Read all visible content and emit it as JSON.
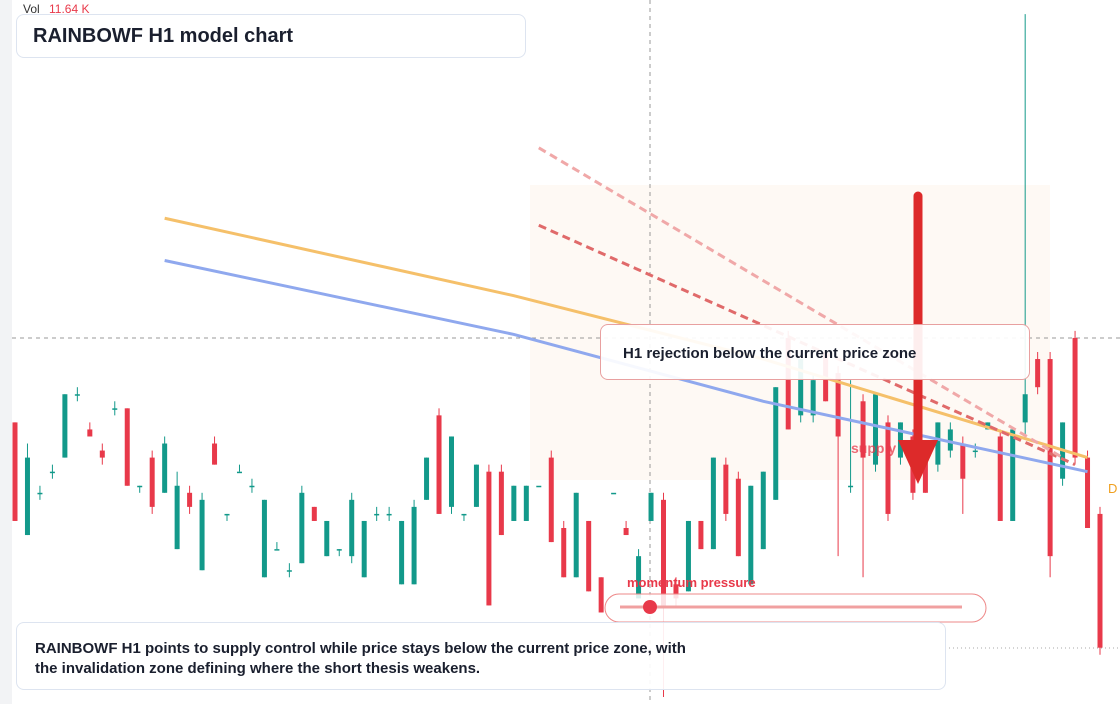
{
  "header": {
    "vol": "Vol",
    "vol_value": "11.64 K",
    "edge_label": "D"
  },
  "chart_data": {
    "type": "candlestick",
    "title": "RAINBOWF H1 model chart",
    "annotation": "H1 rejection below the current price zone",
    "zone_label": "supply",
    "indicator_label": "momentum pressure",
    "note": "RAINBOWF H1 points to supply control while price stays below the current price zone, with the invalidation zone defining where the short thesis weakens.",
    "ylim": [
      0,
      100
    ],
    "up_color": "#12998a",
    "down_color": "#e8394a",
    "candles": [
      [
        40,
        40,
        26,
        26
      ],
      [
        24,
        37,
        24,
        35
      ],
      [
        30,
        31,
        29,
        30
      ],
      [
        33,
        34,
        32,
        33
      ],
      [
        35,
        44,
        35,
        44
      ],
      [
        44,
        45,
        43,
        44
      ],
      [
        39,
        40,
        38,
        38
      ],
      [
        36,
        37,
        34,
        35
      ],
      [
        42,
        43,
        41,
        42
      ],
      [
        42,
        42,
        31,
        31
      ],
      [
        31,
        31,
        30,
        31
      ],
      [
        35,
        36,
        27,
        28
      ],
      [
        30,
        38,
        30,
        37
      ],
      [
        22,
        33,
        22,
        31
      ],
      [
        30,
        31,
        27,
        28
      ],
      [
        19,
        30,
        19,
        29
      ],
      [
        37,
        38,
        34,
        34
      ],
      [
        27,
        27,
        26,
        27
      ],
      [
        33,
        34,
        33,
        33
      ],
      [
        31,
        32,
        30,
        31
      ],
      [
        18,
        29,
        18,
        29
      ],
      [
        22,
        23,
        22,
        22
      ],
      [
        19,
        20,
        18,
        19
      ],
      [
        20,
        31,
        20,
        30
      ],
      [
        28,
        28,
        26,
        26
      ],
      [
        21,
        26,
        21,
        26
      ],
      [
        22,
        22,
        21,
        22
      ],
      [
        21,
        30,
        20,
        29
      ],
      [
        18,
        26,
        18,
        26
      ],
      [
        27,
        28,
        26,
        27
      ],
      [
        27,
        28,
        26,
        27
      ],
      [
        17,
        26,
        17,
        26
      ],
      [
        17,
        29,
        17,
        28
      ],
      [
        29,
        35,
        29,
        35
      ],
      [
        41,
        42,
        27,
        27
      ],
      [
        28,
        38,
        27,
        38
      ],
      [
        27,
        27,
        26,
        27
      ],
      [
        28,
        34,
        28,
        34
      ],
      [
        33,
        34,
        14,
        14
      ],
      [
        33,
        34,
        24,
        24
      ],
      [
        26,
        31,
        26,
        31
      ],
      [
        26,
        31,
        26,
        31
      ],
      [
        31,
        31,
        31,
        31
      ],
      [
        35,
        36,
        23,
        23
      ],
      [
        25,
        26,
        18,
        18
      ],
      [
        18,
        30,
        18,
        30
      ],
      [
        26,
        26,
        16,
        16
      ],
      [
        18,
        18,
        13,
        13
      ],
      [
        30,
        30,
        30,
        30
      ],
      [
        25,
        26,
        24,
        24
      ],
      [
        15,
        22,
        15,
        21
      ],
      [
        26,
        30,
        26,
        30
      ],
      [
        29,
        30,
        1,
        14
      ],
      [
        17,
        18,
        14,
        15
      ],
      [
        16,
        26,
        16,
        26
      ],
      [
        26,
        26,
        22,
        22
      ],
      [
        22,
        35,
        22,
        35
      ],
      [
        34,
        35,
        26,
        27
      ],
      [
        32,
        33,
        21,
        21
      ],
      [
        17,
        31,
        17,
        31
      ],
      [
        22,
        33,
        22,
        33
      ],
      [
        29,
        45,
        29,
        45
      ],
      [
        52,
        53,
        39,
        39
      ],
      [
        41,
        49,
        40,
        49
      ],
      [
        41,
        47,
        40,
        46
      ],
      [
        50,
        50,
        43,
        43
      ],
      [
        47,
        48,
        21,
        38
      ],
      [
        31,
        46,
        30,
        31
      ],
      [
        43,
        44,
        18,
        35
      ],
      [
        34,
        44,
        33,
        44
      ],
      [
        40,
        41,
        26,
        27
      ],
      [
        35,
        40,
        34,
        40
      ],
      [
        38,
        39,
        29,
        30
      ],
      [
        37,
        37,
        30,
        30
      ],
      [
        34,
        40,
        33,
        40
      ],
      [
        36,
        40,
        35,
        39
      ],
      [
        37,
        38,
        27,
        32
      ],
      [
        36,
        37,
        35,
        36
      ],
      [
        39,
        40,
        39,
        40
      ],
      [
        38,
        39,
        26,
        26
      ],
      [
        26,
        39,
        26,
        39
      ],
      [
        40,
        98,
        38,
        44
      ],
      [
        49,
        50,
        44,
        45
      ],
      [
        49,
        50,
        18,
        21
      ],
      [
        32,
        40,
        31,
        40
      ],
      [
        52,
        53,
        34,
        35
      ],
      [
        35,
        36,
        25,
        25
      ],
      [
        27,
        28,
        7,
        8
      ]
    ],
    "overlays": [
      {
        "color": "#f5c06a",
        "dashed": false,
        "x": [
          12,
          40,
          60,
          86
        ],
        "values": [
          69,
          58,
          49,
          35
        ]
      },
      {
        "color": "#8fa8ee",
        "dashed": false,
        "x": [
          12,
          40,
          60,
          86
        ],
        "values": [
          63,
          52.5,
          43,
          33
        ]
      },
      {
        "color": "#e06a6a",
        "dashed": true,
        "x": [
          42,
          85
        ],
        "values": [
          68,
          34
        ]
      },
      {
        "color": "#f0a8a8",
        "dashed": true,
        "x": [
          42,
          84
        ],
        "values": [
          79,
          35
        ]
      }
    ]
  }
}
